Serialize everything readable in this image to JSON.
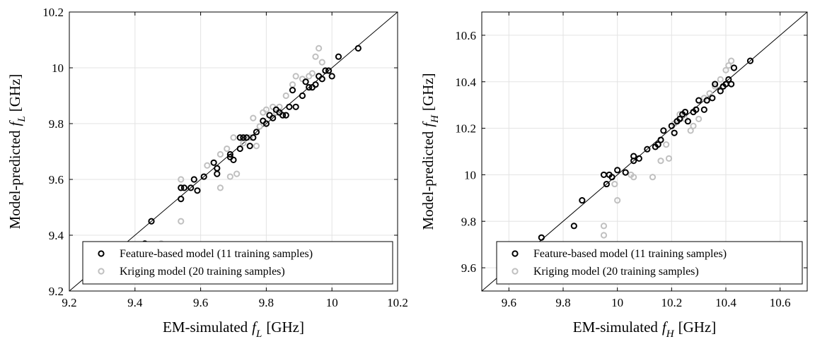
{
  "chart_data": [
    {
      "type": "scatter",
      "xlabel": "EM-simulated f_L [GHz]",
      "ylabel": "Model-predicted f_L [GHz]",
      "axis_label_text": {
        "prefix_x": "EM-simulated",
        "prefix_y": "Model-predicted",
        "var": "f",
        "sub": "L",
        "unit": "[GHz]"
      },
      "xlim": [
        9.2,
        10.2
      ],
      "ylim": [
        9.2,
        10.2
      ],
      "xticks": [
        9.2,
        9.4,
        9.6,
        9.8,
        10,
        10.2
      ],
      "yticks": [
        9.2,
        9.4,
        9.6,
        9.8,
        10,
        10.2
      ],
      "xtick_labels": [
        "9.2",
        "9.4",
        "9.6",
        "9.8",
        "10",
        "10.2"
      ],
      "ytick_labels": [
        "9.2",
        "9.4",
        "9.6",
        "9.8",
        "10",
        "10.2"
      ],
      "grid": true,
      "reference_line": "y = x",
      "legend_position": "bottom-right",
      "series": [
        {
          "name": "Feature-based model (11 training samples)",
          "color": "#000000",
          "x": [
            9.43,
            9.45,
            9.54,
            9.54,
            9.55,
            9.57,
            9.58,
            9.59,
            9.61,
            9.64,
            9.65,
            9.65,
            9.69,
            9.69,
            9.7,
            9.72,
            9.72,
            9.73,
            9.74,
            9.75,
            9.76,
            9.77,
            9.79,
            9.8,
            9.81,
            9.82,
            9.83,
            9.84,
            9.85,
            9.86,
            9.87,
            9.88,
            9.89,
            9.91,
            9.92,
            9.93,
            9.94,
            9.95,
            9.96,
            9.97,
            9.98,
            9.99,
            10.0,
            10.02,
            10.08
          ],
          "y": [
            9.37,
            9.45,
            9.53,
            9.57,
            9.57,
            9.57,
            9.6,
            9.56,
            9.61,
            9.66,
            9.64,
            9.62,
            9.69,
            9.68,
            9.67,
            9.71,
            9.75,
            9.75,
            9.75,
            9.72,
            9.75,
            9.77,
            9.81,
            9.8,
            9.83,
            9.82,
            9.85,
            9.84,
            9.83,
            9.83,
            9.86,
            9.92,
            9.86,
            9.9,
            9.95,
            9.93,
            9.93,
            9.94,
            9.97,
            9.96,
            9.99,
            9.99,
            9.97,
            10.04,
            10.07
          ]
        },
        {
          "name": "Kriging model (20 training samples)",
          "color": "#c0c0c0",
          "x": [
            9.48,
            9.54,
            9.54,
            9.62,
            9.66,
            9.66,
            9.68,
            9.69,
            9.7,
            9.71,
            9.73,
            9.75,
            9.76,
            9.77,
            9.78,
            9.79,
            9.8,
            9.82,
            9.83,
            9.84,
            9.86,
            9.88,
            9.89,
            9.91,
            9.93,
            9.94,
            9.95,
            9.96,
            9.97
          ],
          "y": [
            9.37,
            9.45,
            9.6,
            9.65,
            9.57,
            9.69,
            9.71,
            9.61,
            9.75,
            9.62,
            9.73,
            9.75,
            9.82,
            9.72,
            9.79,
            9.84,
            9.85,
            9.86,
            9.84,
            9.86,
            9.9,
            9.94,
            9.97,
            9.96,
            9.97,
            9.98,
            10.04,
            10.07,
            10.02
          ]
        }
      ]
    },
    {
      "type": "scatter",
      "xlabel": "EM-simulated f_H [GHz]",
      "ylabel": "Model-predicted f_H [GHz]",
      "axis_label_text": {
        "prefix_x": "EM-simulated",
        "prefix_y": "Model-predicted",
        "var": "f",
        "sub": "H",
        "unit": "[GHz]"
      },
      "xlim": [
        9.5,
        10.7
      ],
      "ylim": [
        9.5,
        10.7
      ],
      "xticks": [
        9.6,
        9.8,
        10,
        10.2,
        10.4,
        10.6
      ],
      "yticks": [
        9.6,
        9.8,
        10,
        10.2,
        10.4,
        10.6
      ],
      "xtick_labels": [
        "9.6",
        "9.8",
        "10",
        "10.2",
        "10.4",
        "10.6"
      ],
      "ytick_labels": [
        "9.6",
        "9.8",
        "10",
        "10.2",
        "10.4",
        "10.6"
      ],
      "grid": true,
      "reference_line": "y = x",
      "legend_position": "bottom-right",
      "series": [
        {
          "name": "Feature-based model (11 training samples)",
          "color": "#000000",
          "x": [
            9.72,
            9.84,
            9.87,
            9.95,
            9.96,
            9.97,
            9.98,
            10.0,
            10.03,
            10.06,
            10.06,
            10.08,
            10.11,
            10.14,
            10.15,
            10.16,
            10.17,
            10.2,
            10.21,
            10.22,
            10.23,
            10.24,
            10.25,
            10.26,
            10.28,
            10.29,
            10.3,
            10.32,
            10.33,
            10.35,
            10.36,
            10.38,
            10.39,
            10.4,
            10.41,
            10.42,
            10.43,
            10.49
          ],
          "y": [
            9.73,
            9.78,
            9.89,
            10.0,
            9.96,
            10.0,
            9.99,
            10.02,
            10.01,
            10.06,
            10.08,
            10.07,
            10.11,
            10.12,
            10.13,
            10.15,
            10.19,
            10.21,
            10.18,
            10.23,
            10.24,
            10.26,
            10.27,
            10.23,
            10.27,
            10.28,
            10.32,
            10.28,
            10.32,
            10.33,
            10.39,
            10.36,
            10.38,
            10.39,
            10.41,
            10.39,
            10.46,
            10.49
          ]
        },
        {
          "name": "Kriging model (20 training samples)",
          "color": "#c0c0c0",
          "x": [
            9.95,
            9.95,
            9.99,
            10.0,
            10.05,
            10.06,
            10.13,
            10.16,
            10.18,
            10.19,
            10.21,
            10.23,
            10.25,
            10.27,
            10.28,
            10.3,
            10.32,
            10.34,
            10.36,
            10.38,
            10.4,
            10.41,
            10.42
          ],
          "y": [
            9.78,
            9.74,
            9.96,
            9.89,
            10.0,
            9.99,
            9.99,
            10.06,
            10.13,
            10.07,
            10.22,
            10.26,
            10.24,
            10.19,
            10.21,
            10.24,
            10.33,
            10.35,
            10.38,
            10.41,
            10.45,
            10.47,
            10.49
          ]
        }
      ]
    }
  ]
}
